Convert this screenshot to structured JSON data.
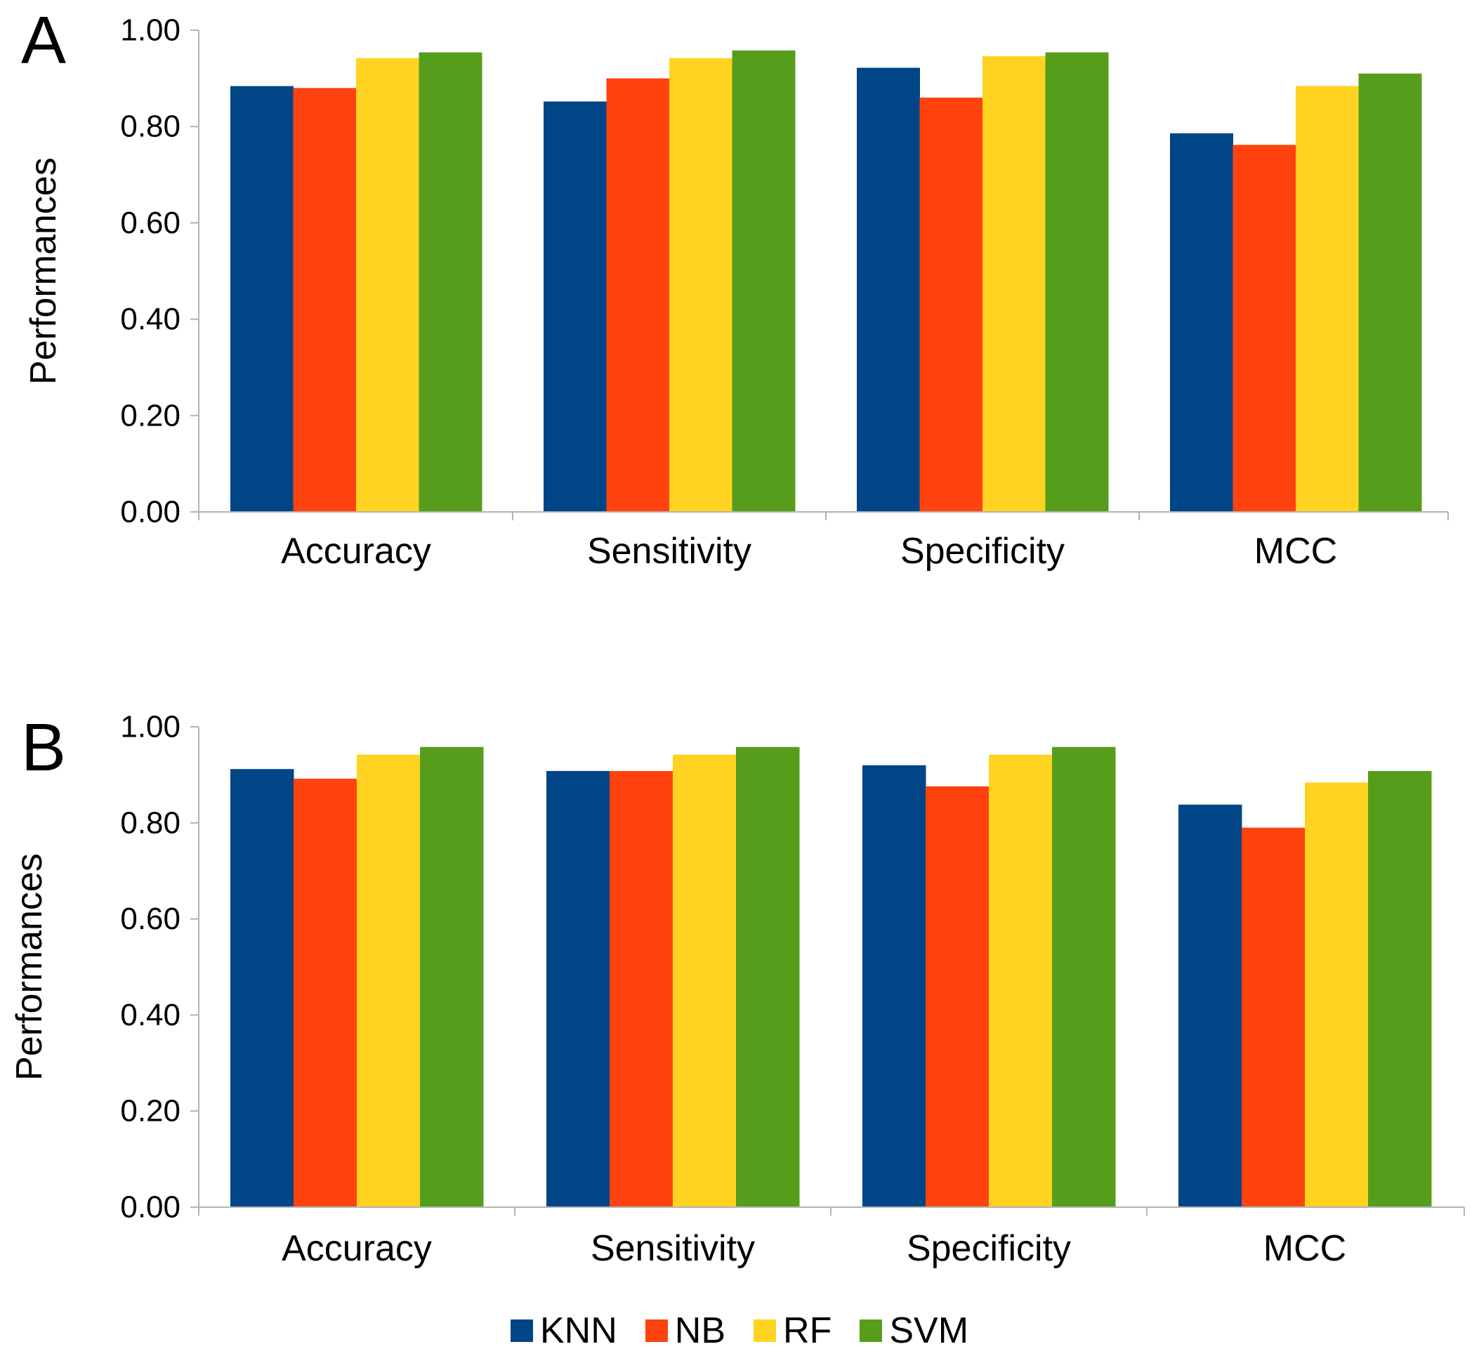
{
  "chart_data": [
    {
      "type": "bar",
      "panel_label": "A",
      "title": "",
      "xlabel": "",
      "ylabel": "Performances",
      "ylim": [
        0,
        1
      ],
      "yticks": [
        "0.00",
        "0.20",
        "0.40",
        "0.60",
        "0.80",
        "1.00"
      ],
      "categories": [
        "Accuracy",
        "Sensitivity",
        "Specificity",
        "MCC"
      ],
      "series": [
        {
          "name": "KNN",
          "color": "#004586",
          "values": [
            0.884,
            0.852,
            0.922,
            0.786
          ]
        },
        {
          "name": "NB",
          "color": "#ff420e",
          "values": [
            0.88,
            0.9,
            0.86,
            0.762
          ]
        },
        {
          "name": "RF",
          "color": "#ffd320",
          "values": [
            0.942,
            0.942,
            0.946,
            0.884
          ]
        },
        {
          "name": "SVM",
          "color": "#579d1c",
          "values": [
            0.954,
            0.958,
            0.954,
            0.91
          ]
        }
      ]
    },
    {
      "type": "bar",
      "panel_label": "B",
      "title": "",
      "xlabel": "",
      "ylabel": "Performances",
      "ylim": [
        0,
        1
      ],
      "yticks": [
        "0.00",
        "0.20",
        "0.40",
        "0.60",
        "0.80",
        "1.00"
      ],
      "categories": [
        "Accuracy",
        "Sensitivity",
        "Specificity",
        "MCC"
      ],
      "series": [
        {
          "name": "KNN",
          "color": "#004586",
          "values": [
            0.912,
            0.908,
            0.92,
            0.838
          ]
        },
        {
          "name": "NB",
          "color": "#ff420e",
          "values": [
            0.892,
            0.908,
            0.876,
            0.79
          ]
        },
        {
          "name": "RF",
          "color": "#ffd320",
          "values": [
            0.942,
            0.942,
            0.942,
            0.884
          ]
        },
        {
          "name": "SVM",
          "color": "#579d1c",
          "values": [
            0.958,
            0.958,
            0.958,
            0.908
          ]
        }
      ]
    }
  ],
  "legend": {
    "items": [
      {
        "label": "KNN",
        "color": "#004586"
      },
      {
        "label": "NB",
        "color": "#ff420e"
      },
      {
        "label": "RF",
        "color": "#ffd320"
      },
      {
        "label": "SVM",
        "color": "#579d1c"
      }
    ]
  }
}
